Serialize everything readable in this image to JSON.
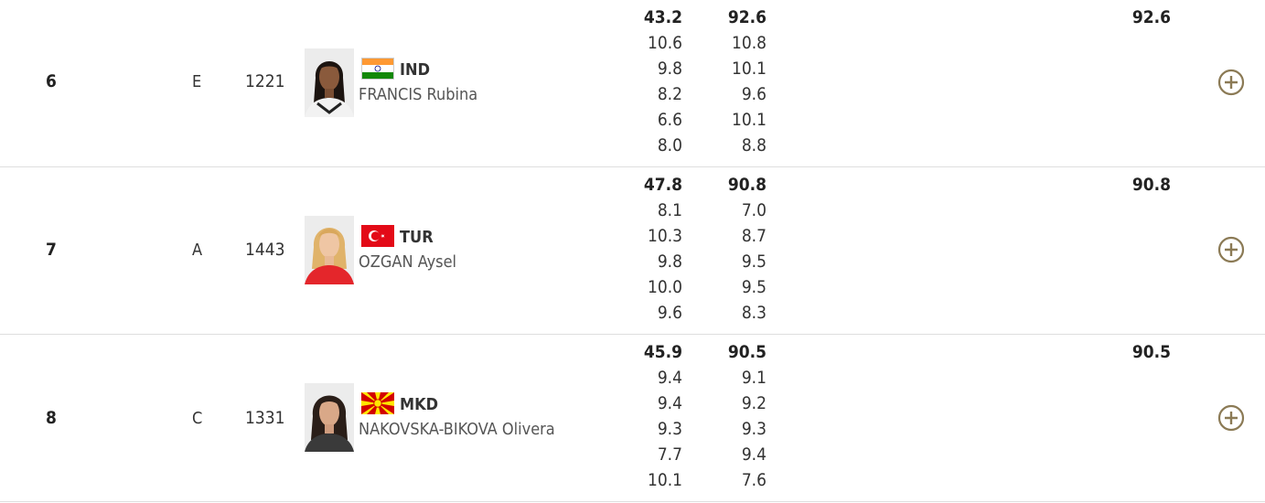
{
  "results": [
    {
      "rank": "6",
      "group": "E",
      "bib": "1221",
      "noc": "IND",
      "athlete": "FRANCIS Rubina",
      "series": [
        "43.2",
        "92.6"
      ],
      "shots": [
        [
          "10.6",
          "10.8"
        ],
        [
          "9.8",
          "10.1"
        ],
        [
          "8.2",
          "9.6"
        ],
        [
          "6.6",
          "10.1"
        ],
        [
          "8.0",
          "8.8"
        ]
      ],
      "total": "92.6",
      "flag_icon": "flag-india-icon",
      "expand_icon": "plus-circle-icon"
    },
    {
      "rank": "7",
      "group": "A",
      "bib": "1443",
      "noc": "TUR",
      "athlete": "OZGAN Aysel",
      "series": [
        "47.8",
        "90.8"
      ],
      "shots": [
        [
          "8.1",
          "7.0"
        ],
        [
          "10.3",
          "8.7"
        ],
        [
          "9.8",
          "9.5"
        ],
        [
          "10.0",
          "9.5"
        ],
        [
          "9.6",
          "8.3"
        ]
      ],
      "total": "90.8",
      "flag_icon": "flag-turkey-icon",
      "expand_icon": "plus-circle-icon"
    },
    {
      "rank": "8",
      "group": "C",
      "bib": "1331",
      "noc": "MKD",
      "athlete": "NAKOVSKA-BIKOVA Olivera",
      "series": [
        "45.9",
        "90.5"
      ],
      "shots": [
        [
          "9.4",
          "9.1"
        ],
        [
          "9.4",
          "9.2"
        ],
        [
          "9.3",
          "9.3"
        ],
        [
          "7.7",
          "9.4"
        ],
        [
          "10.1",
          "7.6"
        ]
      ],
      "total": "90.5",
      "flag_icon": "flag-north-macedonia-icon",
      "expand_icon": "plus-circle-icon"
    }
  ],
  "colors": {
    "accent": "#8b7a55",
    "divider": "#dedede",
    "text": "#333333"
  }
}
